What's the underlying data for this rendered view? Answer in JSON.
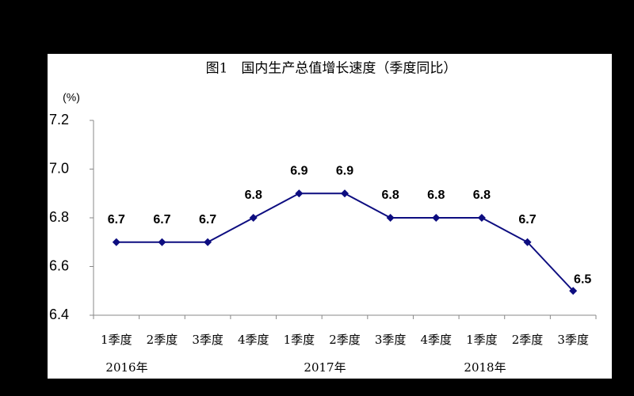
{
  "chart_data": {
    "type": "line",
    "title": "图1　国内生产总值增长速度（季度同比）",
    "y_label": "(%)",
    "categories": [
      "1季度",
      "2季度",
      "3季度",
      "4季度",
      "1季度",
      "2季度",
      "3季度",
      "4季度",
      "1季度",
      "2季度",
      "3季度"
    ],
    "year_labels": [
      "2016年",
      "2017年",
      "2018年"
    ],
    "series": [
      {
        "name": "国内生产总值增长速度",
        "color": "#0d0d80",
        "values": [
          6.7,
          6.7,
          6.7,
          6.8,
          6.9,
          6.9,
          6.8,
          6.8,
          6.8,
          6.7,
          6.5
        ]
      }
    ],
    "ylim": [
      6.4,
      7.2
    ],
    "yticks": [
      6.4,
      6.6,
      6.8,
      {
        "value": 7,
        "label": "7.0"
      },
      7.2
    ],
    "grid": false
  }
}
